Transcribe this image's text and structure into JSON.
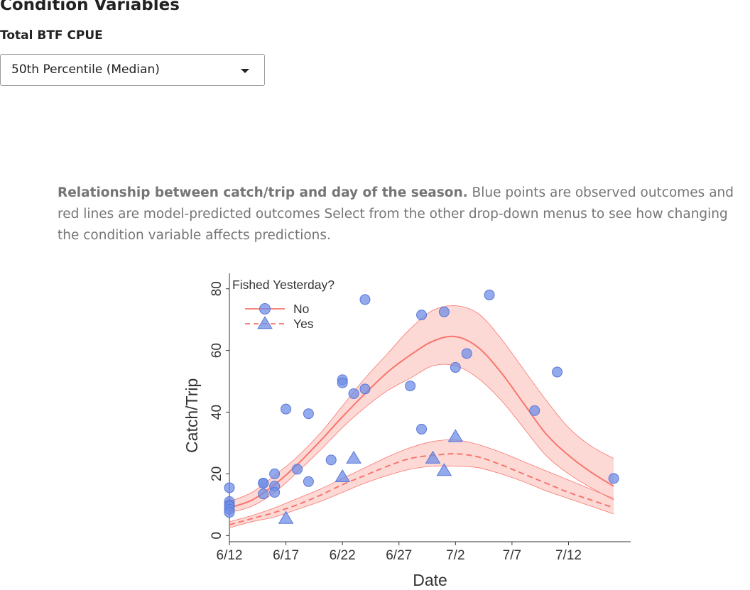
{
  "header": {
    "title": "Condition Variables",
    "subtitle": "Total BTF CPUE",
    "select_value": "50th Percentile (Median)"
  },
  "caption": {
    "bold": "Relationship between catch/trip and day of the season.",
    "text": " Blue points are observed outcomes and red lines are model-predicted outcomes Select from the other drop-down menus to see how changing the condition variable affects predictions."
  },
  "colors": {
    "point": "#6f8de6",
    "line": "#f8766d",
    "ribbon": "#f8766d"
  },
  "chart_data": {
    "type": "scatter",
    "xlabel": "Date",
    "ylabel": "Catch/Trip",
    "xlim": [
      0,
      35.5
    ],
    "ylim": [
      -2,
      85
    ],
    "x_ticks": [
      0,
      5,
      10,
      15,
      20,
      25,
      30
    ],
    "x_tick_labels": [
      "6/12",
      "6/17",
      "6/22",
      "6/27",
      "7/2",
      "7/7",
      "7/12"
    ],
    "y_ticks": [
      0,
      20,
      40,
      60,
      80
    ],
    "legend": {
      "title": "Fished Yesterday?",
      "position": "top-left",
      "entries": [
        "No",
        "Yes"
      ]
    },
    "x_units": "days since 6/12",
    "series": [
      {
        "name": "No",
        "marker": "circle",
        "line": "solid",
        "points": [
          [
            0,
            15.5
          ],
          [
            0,
            11
          ],
          [
            0,
            10
          ],
          [
            0,
            9.5
          ],
          [
            0,
            8.5
          ],
          [
            0,
            7.5
          ],
          [
            3,
            17
          ],
          [
            3,
            17
          ],
          [
            3,
            13.5
          ],
          [
            4,
            20
          ],
          [
            4,
            16
          ],
          [
            4,
            14
          ],
          [
            5,
            41
          ],
          [
            6,
            21.5
          ],
          [
            7,
            39.5
          ],
          [
            7,
            17.5
          ],
          [
            9,
            24.5
          ],
          [
            10,
            50.5
          ],
          [
            10,
            49.5
          ],
          [
            11,
            46
          ],
          [
            12,
            76.5
          ],
          [
            12,
            47.5
          ],
          [
            16,
            48.5
          ],
          [
            17,
            71.5
          ],
          [
            17,
            34.5
          ],
          [
            19,
            72.5
          ],
          [
            20,
            54.5
          ],
          [
            21,
            59
          ],
          [
            23,
            78
          ],
          [
            27,
            40.5
          ],
          [
            29,
            53
          ],
          [
            34,
            18.5
          ]
        ],
        "fit": [
          [
            0,
            9
          ],
          [
            2,
            11.5
          ],
          [
            4,
            16.5
          ],
          [
            6,
            23
          ],
          [
            8,
            30.5
          ],
          [
            10,
            38.5
          ],
          [
            12,
            46
          ],
          [
            14,
            53
          ],
          [
            16,
            58.5
          ],
          [
            18,
            63
          ],
          [
            20,
            64.5
          ],
          [
            22,
            61
          ],
          [
            24,
            53
          ],
          [
            26,
            43
          ],
          [
            28,
            33
          ],
          [
            30,
            26
          ],
          [
            32,
            20.5
          ],
          [
            34,
            16
          ]
        ],
        "ci_upper": [
          [
            0,
            11
          ],
          [
            2,
            14
          ],
          [
            4,
            19.5
          ],
          [
            6,
            25.5
          ],
          [
            8,
            33
          ],
          [
            10,
            42
          ],
          [
            12,
            51
          ],
          [
            14,
            59
          ],
          [
            16,
            67
          ],
          [
            18,
            73
          ],
          [
            20,
            74.5
          ],
          [
            22,
            72
          ],
          [
            24,
            64
          ],
          [
            26,
            54
          ],
          [
            28,
            44
          ],
          [
            30,
            35
          ],
          [
            32,
            29
          ],
          [
            34,
            25
          ]
        ],
        "ci_lower": [
          [
            0,
            7.5
          ],
          [
            2,
            9.5
          ],
          [
            4,
            14
          ],
          [
            6,
            20.5
          ],
          [
            8,
            27.5
          ],
          [
            10,
            35
          ],
          [
            12,
            41.5
          ],
          [
            14,
            47
          ],
          [
            16,
            51
          ],
          [
            18,
            55
          ],
          [
            20,
            55
          ],
          [
            22,
            51
          ],
          [
            24,
            44
          ],
          [
            26,
            35
          ],
          [
            28,
            26
          ],
          [
            30,
            20
          ],
          [
            32,
            15.5
          ],
          [
            34,
            11.5
          ]
        ]
      },
      {
        "name": "Yes",
        "marker": "triangle",
        "line": "dashed",
        "points": [
          [
            5,
            5.5
          ],
          [
            10,
            19
          ],
          [
            11,
            25
          ],
          [
            18,
            25
          ],
          [
            19,
            21
          ],
          [
            20,
            32
          ]
        ],
        "fit": [
          [
            0,
            3.5
          ],
          [
            2,
            5.5
          ],
          [
            4,
            7.5
          ],
          [
            6,
            10
          ],
          [
            8,
            13
          ],
          [
            10,
            16.5
          ],
          [
            12,
            19.5
          ],
          [
            14,
            22.5
          ],
          [
            16,
            25
          ],
          [
            18,
            26
          ],
          [
            20,
            26.5
          ],
          [
            22,
            25.5
          ],
          [
            24,
            23
          ],
          [
            26,
            20
          ],
          [
            28,
            17
          ],
          [
            30,
            14
          ],
          [
            32,
            11.5
          ],
          [
            34,
            9
          ]
        ],
        "ci_upper": [
          [
            0,
            4.5
          ],
          [
            2,
            6.5
          ],
          [
            4,
            9
          ],
          [
            6,
            12
          ],
          [
            8,
            15
          ],
          [
            10,
            18.5
          ],
          [
            12,
            22
          ],
          [
            14,
            25.5
          ],
          [
            16,
            28.5
          ],
          [
            18,
            30.5
          ],
          [
            20,
            31
          ],
          [
            22,
            29.5
          ],
          [
            24,
            27
          ],
          [
            26,
            24
          ],
          [
            28,
            21
          ],
          [
            30,
            18
          ],
          [
            32,
            15
          ],
          [
            34,
            12
          ]
        ],
        "ci_lower": [
          [
            0,
            2.5
          ],
          [
            2,
            4.5
          ],
          [
            4,
            6
          ],
          [
            6,
            8.5
          ],
          [
            8,
            11
          ],
          [
            10,
            14
          ],
          [
            12,
            17
          ],
          [
            14,
            19.5
          ],
          [
            16,
            21.5
          ],
          [
            18,
            22.5
          ],
          [
            20,
            22.5
          ],
          [
            22,
            22
          ],
          [
            24,
            20
          ],
          [
            26,
            17.5
          ],
          [
            28,
            14.5
          ],
          [
            30,
            12
          ],
          [
            32,
            9.5
          ],
          [
            34,
            7
          ]
        ]
      }
    ]
  }
}
